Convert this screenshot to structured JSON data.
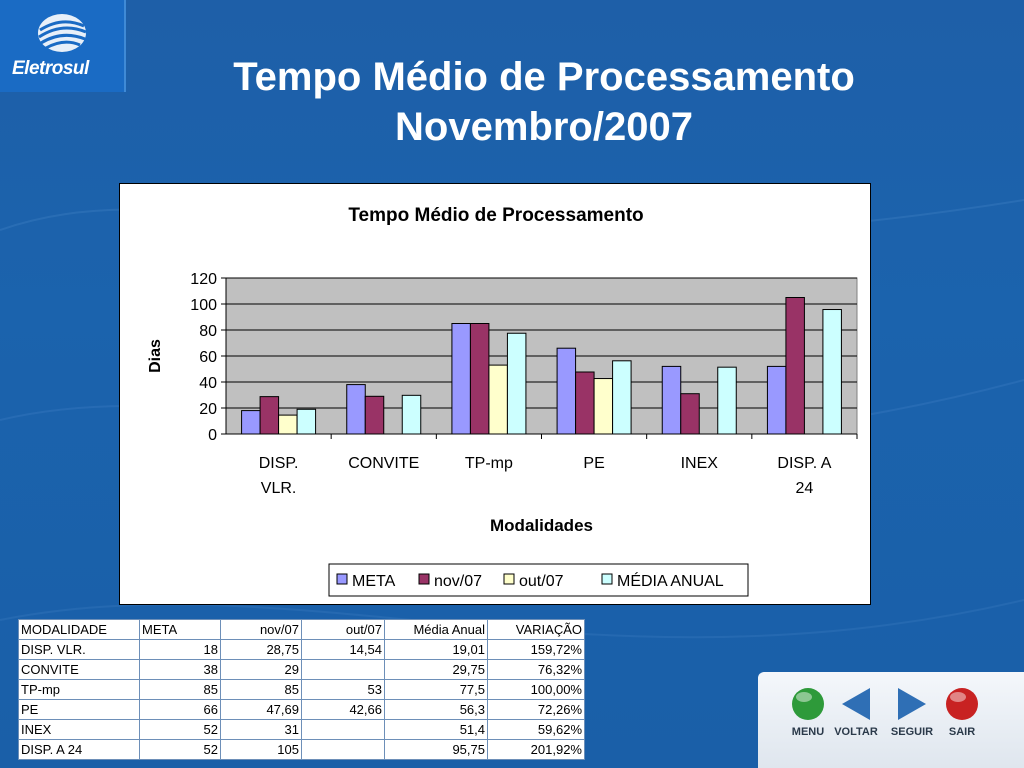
{
  "brand": {
    "logo_text": "Eletrosul"
  },
  "slide": {
    "title_line1": "Tempo Médio de Processamento",
    "title_line2": "Novembro/2007"
  },
  "chart_data": {
    "type": "bar",
    "title": "Tempo Médio de Processamento",
    "xlabel": "Modalidades",
    "ylabel": "Dias",
    "ylim": [
      0,
      120
    ],
    "yticks": [
      0,
      20,
      40,
      60,
      80,
      100,
      120
    ],
    "grid": true,
    "legend_position": "bottom",
    "categories": [
      [
        "DISP.",
        "VLR."
      ],
      [
        "CONVITE"
      ],
      [
        "TP-mp"
      ],
      [
        "PE"
      ],
      [
        "INEX"
      ],
      [
        "DISP. A",
        "24"
      ]
    ],
    "series": [
      {
        "name": "META",
        "color": "#9999ff",
        "values": [
          18,
          38,
          85,
          66,
          52,
          52
        ]
      },
      {
        "name": "nov/07",
        "color": "#993366",
        "values": [
          28.75,
          29,
          85,
          47.69,
          31,
          105
        ]
      },
      {
        "name": "out/07",
        "color": "#ffffcc",
        "values": [
          14.54,
          null,
          53,
          42.66,
          null,
          null
        ]
      },
      {
        "name": "MÉDIA ANUAL",
        "color": "#ccffff",
        "values": [
          19.01,
          29.75,
          77.5,
          56.3,
          51.4,
          95.75
        ]
      }
    ]
  },
  "table": {
    "headers": [
      "MODALIDADE",
      "META",
      "nov/07",
      "out/07",
      "Média Anual",
      "VARIAÇÃO"
    ],
    "rows": [
      [
        "DISP. VLR.",
        "18",
        "28,75",
        "14,54",
        "19,01",
        "159,72%"
      ],
      [
        "CONVITE",
        "38",
        "29",
        "",
        "29,75",
        "76,32%"
      ],
      [
        "TP-mp",
        "85",
        "85",
        "53",
        "77,5",
        "100,00%"
      ],
      [
        "PE",
        "66",
        "47,69",
        "42,66",
        "56,3",
        "72,26%"
      ],
      [
        "INEX",
        "52",
        "31",
        "",
        "51,4",
        "59,62%"
      ],
      [
        "DISP. A 24",
        "52",
        "105",
        "",
        "95,75",
        "201,92%"
      ]
    ]
  },
  "nav": {
    "menu": "MENU",
    "voltar": "VOLTAR",
    "seguir": "SEGUIR",
    "sair": "SAIR",
    "colors": {
      "menu": "#2e9a3a",
      "voltar": "#2f6fb5",
      "seguir": "#2f6fb5",
      "sair": "#c82222"
    }
  }
}
